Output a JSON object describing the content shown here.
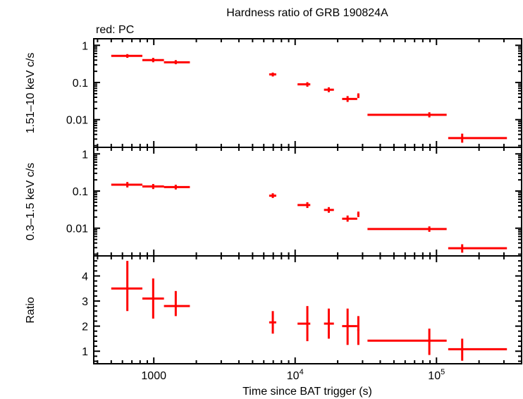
{
  "chart_data": [
    {
      "panel": "top",
      "type": "scatter",
      "title": "Hardness ratio of GRB 190824A",
      "subtitle": "red: PC",
      "xlabel": "Time since BAT trigger (s)",
      "ylabel": "1.51–10 keV c/s",
      "xscale": "log",
      "yscale": "log",
      "xlim": [
        376,
        400000
      ],
      "ylim": [
        0.0018,
        1.5
      ],
      "yticks": [
        {
          "value": 1,
          "label": "1"
        },
        {
          "value": 0.1,
          "label": "0.1"
        },
        {
          "value": 0.01,
          "label": "0.01"
        }
      ],
      "series": [
        {
          "name": "PC",
          "color": "#ff0000",
          "points": [
            {
              "x": 650,
              "xlo": 500,
              "xhi": 830,
              "y": 0.52,
              "ylo": 0.46,
              "yhi": 0.58
            },
            {
              "x": 990,
              "xlo": 830,
              "xhi": 1180,
              "y": 0.4,
              "ylo": 0.35,
              "yhi": 0.46
            },
            {
              "x": 1430,
              "xlo": 1180,
              "xhi": 1800,
              "y": 0.35,
              "ylo": 0.31,
              "yhi": 0.4
            },
            {
              "x": 6950,
              "xlo": 6550,
              "xhi": 7350,
              "y": 0.165,
              "ylo": 0.145,
              "yhi": 0.185
            },
            {
              "x": 12200,
              "xlo": 10400,
              "xhi": 12800,
              "y": 0.089,
              "ylo": 0.077,
              "yhi": 0.102
            },
            {
              "x": 17300,
              "xlo": 16000,
              "xhi": 18800,
              "y": 0.064,
              "ylo": 0.055,
              "yhi": 0.074
            },
            {
              "x": 23500,
              "xlo": 21500,
              "xhi": 27500,
              "y": 0.036,
              "ylo": 0.03,
              "yhi": 0.043
            },
            {
              "x": 28000,
              "xlo": 27500,
              "xhi": 28500,
              "y": 0.044,
              "ylo": 0.038,
              "yhi": 0.051
            },
            {
              "x": 89000,
              "xlo": 32500,
              "xhi": 118000,
              "y": 0.0135,
              "ylo": 0.0115,
              "yhi": 0.0158
            },
            {
              "x": 152000,
              "xlo": 121000,
              "xhi": 315000,
              "y": 0.0032,
              "ylo": 0.0024,
              "yhi": 0.0042
            }
          ]
        }
      ]
    },
    {
      "panel": "middle",
      "type": "scatter",
      "ylabel": "0.3–1.5 keV c/s",
      "xscale": "log",
      "yscale": "log",
      "xlim": [
        376,
        400000
      ],
      "ylim": [
        0.0018,
        1.5
      ],
      "yticks": [
        {
          "value": 1,
          "label": "1"
        },
        {
          "value": 0.1,
          "label": "0.1"
        },
        {
          "value": 0.01,
          "label": "0.01"
        }
      ],
      "series": [
        {
          "name": "PC",
          "color": "#ff0000",
          "points": [
            {
              "x": 650,
              "xlo": 500,
              "xhi": 830,
              "y": 0.148,
              "ylo": 0.125,
              "yhi": 0.175
            },
            {
              "x": 990,
              "xlo": 830,
              "xhi": 1180,
              "y": 0.133,
              "ylo": 0.113,
              "yhi": 0.155
            },
            {
              "x": 1430,
              "xlo": 1180,
              "xhi": 1800,
              "y": 0.128,
              "ylo": 0.11,
              "yhi": 0.148
            },
            {
              "x": 6950,
              "xlo": 6550,
              "xhi": 7350,
              "y": 0.075,
              "ylo": 0.065,
              "yhi": 0.087
            },
            {
              "x": 12200,
              "xlo": 10400,
              "xhi": 12800,
              "y": 0.042,
              "ylo": 0.035,
              "yhi": 0.05
            },
            {
              "x": 17300,
              "xlo": 16000,
              "xhi": 18800,
              "y": 0.031,
              "ylo": 0.026,
              "yhi": 0.037
            },
            {
              "x": 23500,
              "xlo": 21500,
              "xhi": 27500,
              "y": 0.018,
              "ylo": 0.015,
              "yhi": 0.022
            },
            {
              "x": 28000,
              "xlo": 27500,
              "xhi": 28500,
              "y": 0.024,
              "ylo": 0.02,
              "yhi": 0.028
            },
            {
              "x": 89000,
              "xlo": 32500,
              "xhi": 118000,
              "y": 0.0095,
              "ylo": 0.008,
              "yhi": 0.0112
            },
            {
              "x": 152000,
              "xlo": 121000,
              "xhi": 315000,
              "y": 0.0029,
              "ylo": 0.0022,
              "yhi": 0.0037
            }
          ]
        }
      ]
    },
    {
      "panel": "bottom",
      "type": "scatter",
      "ylabel": "Ratio",
      "xscale": "log",
      "yscale": "linear",
      "xlim": [
        376,
        400000
      ],
      "ylim": [
        0.5,
        4.8
      ],
      "yticks": [
        {
          "value": 4,
          "label": "4"
        },
        {
          "value": 3,
          "label": "3"
        },
        {
          "value": 2,
          "label": "2"
        },
        {
          "value": 1,
          "label": "1"
        }
      ],
      "xticks": [
        {
          "value": 1000,
          "label": "1000"
        },
        {
          "value": 10000,
          "label": "10",
          "sup": "4"
        },
        {
          "value": 100000,
          "label": "10",
          "sup": "5"
        }
      ],
      "series": [
        {
          "name": "PC",
          "color": "#ff0000",
          "points": [
            {
              "x": 650,
              "xlo": 500,
              "xhi": 830,
              "y": 3.5,
              "ylo": 2.6,
              "yhi": 4.6
            },
            {
              "x": 990,
              "xlo": 830,
              "xhi": 1180,
              "y": 3.1,
              "ylo": 2.3,
              "yhi": 3.9
            },
            {
              "x": 1430,
              "xlo": 1180,
              "xhi": 1800,
              "y": 2.8,
              "ylo": 2.4,
              "yhi": 3.4
            },
            {
              "x": 6950,
              "xlo": 6550,
              "xhi": 7350,
              "y": 2.15,
              "ylo": 1.7,
              "yhi": 2.6
            },
            {
              "x": 12200,
              "xlo": 10400,
              "xhi": 12800,
              "y": 2.1,
              "ylo": 1.4,
              "yhi": 2.8
            },
            {
              "x": 17300,
              "xlo": 16000,
              "xhi": 18800,
              "y": 2.1,
              "ylo": 1.5,
              "yhi": 2.7
            },
            {
              "x": 23500,
              "xlo": 21500,
              "xhi": 27500,
              "y": 2.0,
              "ylo": 1.25,
              "yhi": 2.7
            },
            {
              "x": 28000,
              "xlo": 27500,
              "xhi": 28500,
              "y": 1.85,
              "ylo": 1.25,
              "yhi": 2.4
            },
            {
              "x": 89000,
              "xlo": 32500,
              "xhi": 118000,
              "y": 1.42,
              "ylo": 0.85,
              "yhi": 1.9
            },
            {
              "x": 152000,
              "xlo": 121000,
              "xhi": 315000,
              "y": 1.08,
              "ylo": 0.62,
              "yhi": 1.5
            }
          ]
        }
      ]
    }
  ],
  "labels": {
    "title": "Hardness ratio of GRB 190824A",
    "legend": "red: PC",
    "xlabel": "Time since BAT trigger (s)",
    "ylabel_top": "1.51–10 keV c/s",
    "ylabel_middle": "0.3–1.5 keV c/s",
    "ylabel_bottom": "Ratio"
  }
}
